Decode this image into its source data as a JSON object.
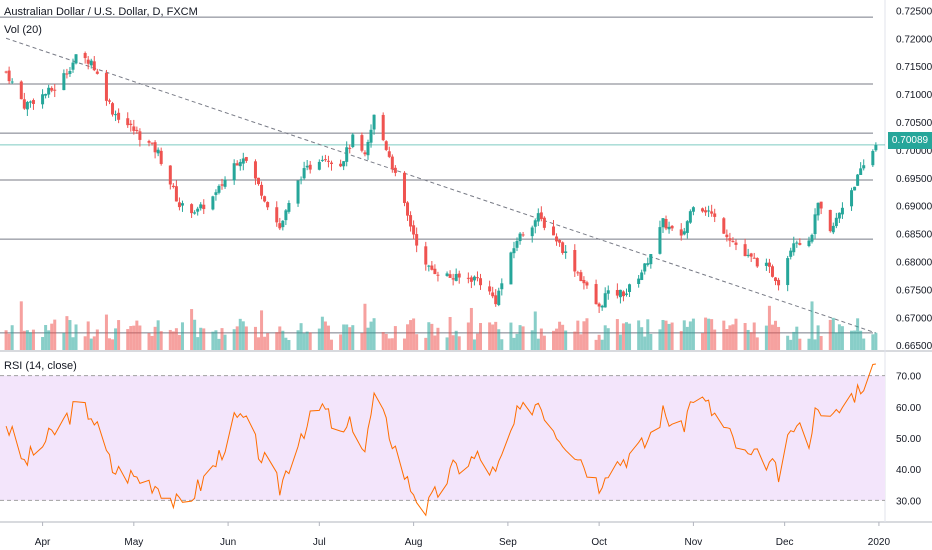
{
  "header": {
    "symbol_title": "Australian Dollar / U.S. Dollar, D, FXCM",
    "vol_label": "Vol (20)",
    "rsi_label": "RSI (14, close)"
  },
  "last_price": "0.70089",
  "colors": {
    "up": "#26a69a",
    "down": "#ef5350",
    "rsi_line": "#ff6d00",
    "rsi_band": "#f3e5fb",
    "hline": "#787b86"
  },
  "chart_data": [
    {
      "type": "candlestick",
      "title": "Australian Dollar / U.S. Dollar, D, FXCM",
      "x_tick_labels": [
        "Apr",
        "May",
        "Jun",
        "Jul",
        "Aug",
        "Sep",
        "Oct",
        "Nov",
        "Dec",
        "2020"
      ],
      "y_tick_labels": [
        "0.72500",
        "0.72000",
        "0.71500",
        "0.71000",
        "0.70500",
        "0.70000",
        "0.69500",
        "0.69000",
        "0.68500",
        "0.68000",
        "0.67500",
        "0.67000",
        "0.66500"
      ],
      "ylim": [
        0.6645,
        0.7265
      ],
      "horizontal_lines": [
        0.7238,
        0.7118,
        0.703,
        0.6946,
        0.684,
        0.6672
      ],
      "trendline": {
        "from": [
          "2019-03-20",
          0.72
        ],
        "to": [
          "2019-12-31",
          0.6672
        ]
      },
      "anchors": [
        [
          "2019-03-20",
          0.714
        ],
        [
          "2019-03-26",
          0.708
        ],
        [
          "2019-04-05",
          0.711
        ],
        [
          "2019-04-12",
          0.7165
        ],
        [
          "2019-04-17",
          0.716
        ],
        [
          "2019-04-24",
          0.707
        ],
        [
          "2019-04-30",
          0.704
        ],
        [
          "2019-05-09",
          0.6995
        ],
        [
          "2019-05-16",
          0.69
        ],
        [
          "2019-05-22",
          0.689
        ],
        [
          "2019-05-28",
          0.692
        ],
        [
          "2019-06-03",
          0.6975
        ],
        [
          "2019-06-06",
          0.699
        ],
        [
          "2019-06-12",
          0.6925
        ],
        [
          "2019-06-18",
          0.686
        ],
        [
          "2019-06-25",
          0.6955
        ],
        [
          "2019-07-02",
          0.699
        ],
        [
          "2019-07-08",
          0.6975
        ],
        [
          "2019-07-12",
          0.702
        ],
        [
          "2019-07-16",
          0.6985
        ],
        [
          "2019-07-19",
          0.706
        ],
        [
          "2019-07-24",
          0.699
        ],
        [
          "2019-07-30",
          0.688
        ],
        [
          "2019-08-05",
          0.679
        ],
        [
          "2019-08-14",
          0.677
        ],
        [
          "2019-08-22",
          0.677
        ],
        [
          "2019-08-28",
          0.673
        ],
        [
          "2019-09-04",
          0.684
        ],
        [
          "2019-09-11",
          0.688
        ],
        [
          "2019-09-17",
          0.684
        ],
        [
          "2019-09-24",
          0.678
        ],
        [
          "2019-10-01",
          0.6715
        ],
        [
          "2019-10-03",
          0.674
        ],
        [
          "2019-10-10",
          0.6745
        ],
        [
          "2019-10-16",
          0.679
        ],
        [
          "2019-10-22",
          0.687
        ],
        [
          "2019-10-28",
          0.684
        ],
        [
          "2019-11-01",
          0.6905
        ],
        [
          "2019-11-06",
          0.689
        ],
        [
          "2019-11-12",
          0.685
        ],
        [
          "2019-11-18",
          0.681
        ],
        [
          "2019-11-25",
          0.679
        ],
        [
          "2019-11-29",
          0.6765
        ],
        [
          "2019-12-04",
          0.684
        ],
        [
          "2019-12-09",
          0.683
        ],
        [
          "2019-12-12",
          0.69
        ],
        [
          "2019-12-16",
          0.685
        ],
        [
          "2019-12-20",
          0.69
        ],
        [
          "2019-12-26",
          0.696
        ],
        [
          "2019-12-31",
          0.701
        ]
      ]
    },
    {
      "type": "bar",
      "title": "Vol (20)",
      "note": "volume histogram, relative heights"
    },
    {
      "type": "line",
      "title": "RSI (14, close)",
      "y_tick_labels": [
        "70.00",
        "60.00",
        "50.00",
        "40.00",
        "30.00"
      ],
      "ylim": [
        25,
        75
      ],
      "bands": [
        30,
        70
      ],
      "anchors": [
        [
          "2019-03-20",
          55
        ],
        [
          "2019-03-26",
          42
        ],
        [
          "2019-04-05",
          52
        ],
        [
          "2019-04-12",
          60
        ],
        [
          "2019-04-17",
          58
        ],
        [
          "2019-04-24",
          40
        ],
        [
          "2019-04-30",
          38
        ],
        [
          "2019-05-09",
          35
        ],
        [
          "2019-05-16",
          28
        ],
        [
          "2019-05-22",
          34
        ],
        [
          "2019-05-28",
          42
        ],
        [
          "2019-06-03",
          55
        ],
        [
          "2019-06-06",
          56
        ],
        [
          "2019-06-12",
          44
        ],
        [
          "2019-06-18",
          34
        ],
        [
          "2019-06-25",
          52
        ],
        [
          "2019-07-02",
          60
        ],
        [
          "2019-07-08",
          50
        ],
        [
          "2019-07-12",
          55
        ],
        [
          "2019-07-16",
          46
        ],
        [
          "2019-07-19",
          63
        ],
        [
          "2019-07-24",
          52
        ],
        [
          "2019-07-30",
          36
        ],
        [
          "2019-08-05",
          27
        ],
        [
          "2019-08-14",
          40
        ],
        [
          "2019-08-22",
          44
        ],
        [
          "2019-08-28",
          38
        ],
        [
          "2019-09-04",
          57
        ],
        [
          "2019-09-11",
          62
        ],
        [
          "2019-09-17",
          52
        ],
        [
          "2019-09-24",
          45
        ],
        [
          "2019-10-01",
          35
        ],
        [
          "2019-10-03",
          40
        ],
        [
          "2019-10-10",
          44
        ],
        [
          "2019-10-16",
          48
        ],
        [
          "2019-10-22",
          58
        ],
        [
          "2019-10-28",
          52
        ],
        [
          "2019-11-01",
          64
        ],
        [
          "2019-11-06",
          60
        ],
        [
          "2019-11-12",
          52
        ],
        [
          "2019-11-18",
          44
        ],
        [
          "2019-11-25",
          43
        ],
        [
          "2019-11-29",
          38
        ],
        [
          "2019-12-04",
          54
        ],
        [
          "2019-12-09",
          50
        ],
        [
          "2019-12-12",
          62
        ],
        [
          "2019-12-16",
          55
        ],
        [
          "2019-12-20",
          60
        ],
        [
          "2019-12-26",
          67
        ],
        [
          "2019-12-31",
          73
        ]
      ]
    }
  ]
}
